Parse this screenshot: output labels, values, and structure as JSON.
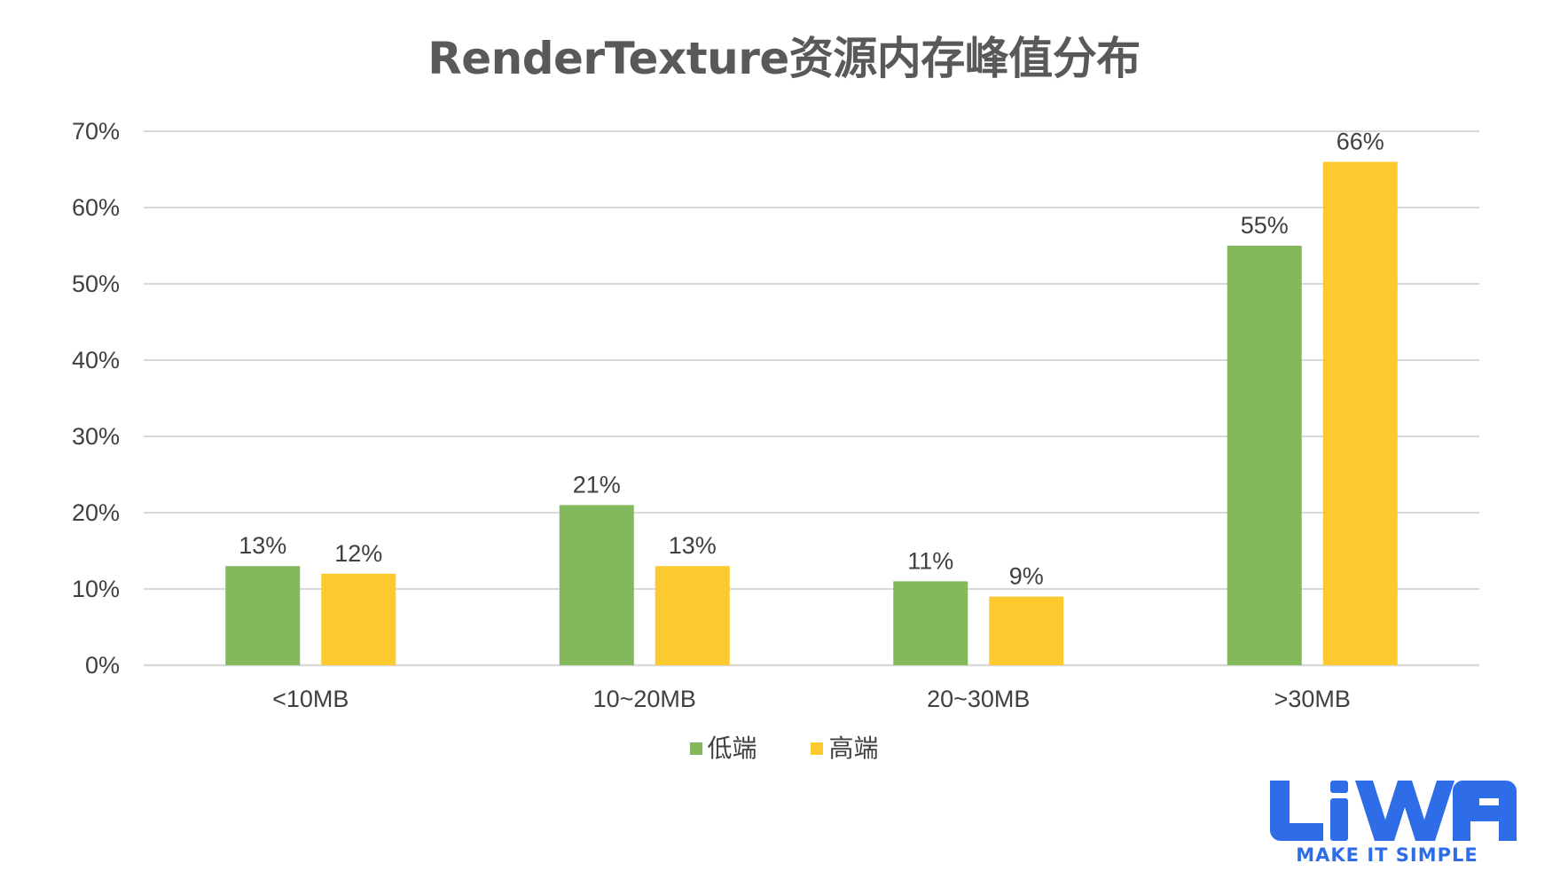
{
  "chart_data": {
    "type": "bar",
    "title": "RenderTexture资源内存峰值分布",
    "categories": [
      "<10MB",
      "10~20MB",
      "20~30MB",
      ">30MB"
    ],
    "series": [
      {
        "name": "低端",
        "color": "#84b85d",
        "values": [
          13,
          21,
          11,
          55
        ],
        "labels": [
          "13%",
          "21%",
          "11%",
          "55%"
        ]
      },
      {
        "name": "高端",
        "color": "#fcc92e",
        "values": [
          12,
          13,
          9,
          66
        ],
        "labels": [
          "12%",
          "13%",
          "9%",
          "66%"
        ]
      }
    ],
    "y_ticks": [
      "0%",
      "10%",
      "20%",
      "30%",
      "40%",
      "50%",
      "60%",
      "70%"
    ],
    "ylim": [
      0,
      70
    ],
    "grid": true,
    "legend_placement": "bottom"
  },
  "logo": {
    "text": "LiWA",
    "tagline": "MAKE IT SIMPLE",
    "color": "#2f6de8"
  }
}
